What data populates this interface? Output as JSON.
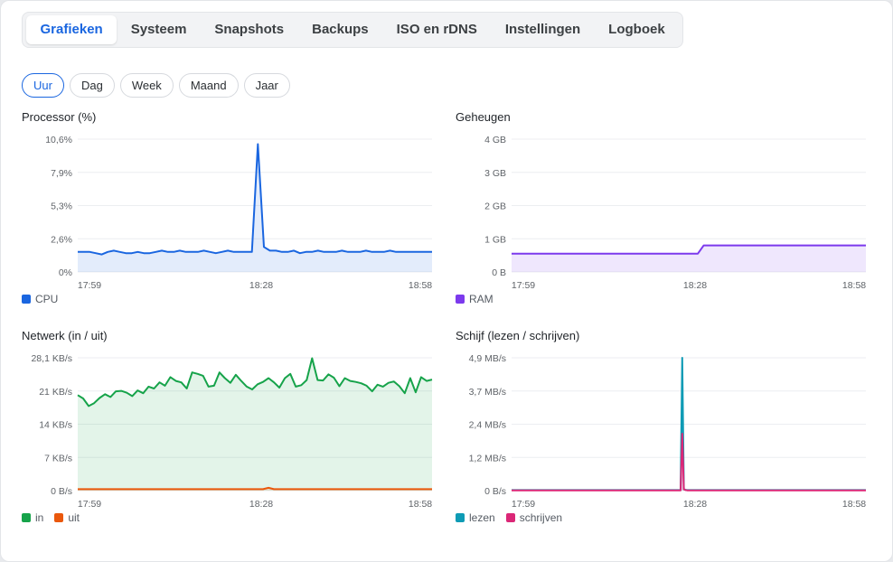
{
  "tabs": [
    {
      "label": "Grafieken",
      "active": true
    },
    {
      "label": "Systeem",
      "active": false
    },
    {
      "label": "Snapshots",
      "active": false
    },
    {
      "label": "Backups",
      "active": false
    },
    {
      "label": "ISO en rDNS",
      "active": false
    },
    {
      "label": "Instellingen",
      "active": false
    },
    {
      "label": "Logboek",
      "active": false
    }
  ],
  "ranges": [
    {
      "label": "Uur",
      "active": true
    },
    {
      "label": "Dag",
      "active": false
    },
    {
      "label": "Week",
      "active": false
    },
    {
      "label": "Maand",
      "active": false
    },
    {
      "label": "Jaar",
      "active": false
    }
  ],
  "charts": {
    "cpu": {
      "title": "Processor (%)",
      "legend": [
        {
          "label": "CPU",
          "color": "#1a66e0"
        }
      ]
    },
    "ram": {
      "title": "Geheugen",
      "legend": [
        {
          "label": "RAM",
          "color": "#7c3aed"
        }
      ]
    },
    "net": {
      "title": "Netwerk (in / uit)",
      "legend": [
        {
          "label": "in",
          "color": "#16a34a"
        },
        {
          "label": "uit",
          "color": "#ea580c"
        }
      ]
    },
    "disk": {
      "title": "Schijf (lezen / schrijven)",
      "legend": [
        {
          "label": "lezen",
          "color": "#0e9bb5"
        },
        {
          "label": "schrijven",
          "color": "#db2777"
        }
      ]
    }
  },
  "chart_data": [
    {
      "id": "cpu",
      "type": "area",
      "title": "Processor (%)",
      "x_ticks": [
        "17:59",
        "18:28",
        "18:58"
      ],
      "y_ticks": [
        "0%",
        "2,6%",
        "5,3%",
        "7,9%",
        "10,6%"
      ],
      "ylim": [
        0,
        10.6
      ],
      "grid": true,
      "legend": "bottom-left",
      "series": [
        {
          "name": "CPU",
          "color": "#1a66e0",
          "values": [
            1.6,
            1.6,
            1.6,
            1.5,
            1.4,
            1.6,
            1.7,
            1.6,
            1.5,
            1.5,
            1.6,
            1.5,
            1.5,
            1.6,
            1.7,
            1.6,
            1.6,
            1.7,
            1.6,
            1.6,
            1.6,
            1.7,
            1.6,
            1.5,
            1.6,
            1.7,
            1.6,
            1.6,
            1.6,
            1.6,
            10.2,
            2.0,
            1.7,
            1.7,
            1.6,
            1.6,
            1.7,
            1.5,
            1.6,
            1.6,
            1.7,
            1.6,
            1.6,
            1.6,
            1.7,
            1.6,
            1.6,
            1.6,
            1.7,
            1.6,
            1.6,
            1.6,
            1.7,
            1.6,
            1.6,
            1.6,
            1.6,
            1.6,
            1.6,
            1.6
          ]
        }
      ]
    },
    {
      "id": "ram",
      "type": "area",
      "title": "Geheugen",
      "x_ticks": [
        "17:59",
        "18:28",
        "18:58"
      ],
      "y_ticks": [
        "0 B",
        "1 GB",
        "2 GB",
        "3 GB",
        "4 GB"
      ],
      "ylim": [
        0,
        4
      ],
      "grid": true,
      "legend": "bottom-left",
      "series": [
        {
          "name": "RAM",
          "color": "#7c3aed",
          "values": [
            0.55,
            0.55,
            0.55,
            0.55,
            0.55,
            0.55,
            0.55,
            0.55,
            0.55,
            0.55,
            0.55,
            0.55,
            0.55,
            0.55,
            0.55,
            0.55,
            0.55,
            0.55,
            0.55,
            0.55,
            0.55,
            0.55,
            0.55,
            0.55,
            0.55,
            0.55,
            0.55,
            0.55,
            0.55,
            0.55,
            0.55,
            0.55,
            0.8,
            0.8,
            0.8,
            0.8,
            0.8,
            0.8,
            0.8,
            0.8,
            0.8,
            0.8,
            0.8,
            0.8,
            0.8,
            0.8,
            0.8,
            0.8,
            0.8,
            0.8,
            0.8,
            0.8,
            0.8,
            0.8,
            0.8,
            0.8,
            0.8,
            0.8,
            0.8,
            0.8
          ]
        }
      ]
    },
    {
      "id": "net",
      "type": "area",
      "title": "Netwerk (in / uit)",
      "x_ticks": [
        "17:59",
        "18:28",
        "18:58"
      ],
      "y_ticks": [
        "0 B/s",
        "7 KB/s",
        "14 KB/s",
        "21 KB/s",
        "28,1 KB/s"
      ],
      "ylim": [
        0,
        28.1
      ],
      "grid": true,
      "legend": "bottom-left",
      "series": [
        {
          "name": "in",
          "color": "#16a34a",
          "values": [
            20.2,
            19.5,
            17.9,
            18.5,
            19.6,
            20.4,
            19.8,
            21.0,
            21.1,
            20.7,
            20.0,
            21.2,
            20.6,
            22.0,
            21.6,
            22.9,
            22.2,
            24.0,
            23.2,
            22.9,
            21.6,
            25.0,
            24.7,
            24.3,
            22.0,
            22.2,
            25.0,
            23.8,
            22.8,
            24.5,
            23.2,
            22.0,
            21.4,
            22.5,
            23.0,
            23.8,
            22.9,
            21.8,
            23.8,
            24.7,
            22.0,
            22.3,
            23.4,
            28.0,
            23.4,
            23.3,
            24.6,
            23.9,
            22.1,
            23.8,
            23.2,
            23.0,
            22.7,
            22.2,
            21.0,
            22.4,
            22.0,
            22.8,
            23.1,
            22.1,
            20.6,
            23.8,
            20.8,
            24.0,
            23.2,
            23.5
          ]
        },
        {
          "name": "uit",
          "color": "#ea580c",
          "values": [
            0.3,
            0.3,
            0.3,
            0.3,
            0.3,
            0.3,
            0.3,
            0.3,
            0.3,
            0.3,
            0.3,
            0.3,
            0.3,
            0.3,
            0.3,
            0.3,
            0.3,
            0.3,
            0.3,
            0.3,
            0.3,
            0.3,
            0.3,
            0.3,
            0.3,
            0.3,
            0.3,
            0.3,
            0.3,
            0.3,
            0.3,
            0.3,
            0.3,
            0.3,
            0.3,
            0.6,
            0.3,
            0.3,
            0.3,
            0.3,
            0.3,
            0.3,
            0.3,
            0.3,
            0.3,
            0.3,
            0.3,
            0.3,
            0.3,
            0.3,
            0.3,
            0.3,
            0.3,
            0.3,
            0.3,
            0.3,
            0.3,
            0.3,
            0.3,
            0.3,
            0.3,
            0.3,
            0.3,
            0.3,
            0.3,
            0.3
          ]
        }
      ]
    },
    {
      "id": "disk",
      "type": "area",
      "title": "Schijf (lezen / schrijven)",
      "x_ticks": [
        "17:59",
        "18:28",
        "18:58"
      ],
      "y_ticks": [
        "0 B/s",
        "1,2 MB/s",
        "2,4 MB/s",
        "3,7 MB/s",
        "4,9 MB/s"
      ],
      "ylim": [
        0,
        4.9
      ],
      "grid": true,
      "legend": "bottom-left",
      "series": [
        {
          "name": "lezen",
          "color": "#0e9bb5",
          "values": [
            0.02,
            0.02,
            0.02,
            0.02,
            0.02,
            0.02,
            0.02,
            0.02,
            0.02,
            0.02,
            0.02,
            0.02,
            0.02,
            0.02,
            0.02,
            0.02,
            0.02,
            0.02,
            0.02,
            0.02,
            0.02,
            0.02,
            0.02,
            0.02,
            0.02,
            0.02,
            0.02,
            0.02,
            0.02,
            0.02,
            0.02,
            0.02,
            0.02,
            0.02,
            0.02,
            0.02,
            0.02,
            0.02,
            0.02,
            0.02,
            0.02,
            0.02,
            0.02,
            0.02,
            0.02,
            0.02,
            0.02,
            0.02,
            0.02,
            0.02,
            0.02,
            0.02,
            0.02,
            0.02,
            0.02,
            0.02,
            0.02,
            0.02,
            0.02,
            0.02,
            0.02,
            0.02,
            0.02,
            0.02,
            0.02,
            0.02,
            0.02,
            0.02,
            0.02,
            0.02,
            0.02,
            0.02,
            0.02,
            0.02,
            0.02,
            0.02,
            0.02,
            0.02,
            0.02,
            0.02,
            0.02,
            0.02,
            0.02,
            0.02,
            0.02,
            0.02,
            0.02,
            0.02,
            0.02,
            0.02,
            0.02,
            0.02,
            0.02,
            0.02,
            0.02,
            0.02,
            0.02,
            0.02,
            0.02,
            0.02,
            0.02,
            0.02,
            0.02,
            0.02,
            0.02,
            4.9,
            0.05,
            0.03,
            0.02,
            0.02,
            0.02,
            0.02,
            0.02,
            0.02,
            0.02,
            0.02,
            0.02,
            0.02,
            0.02,
            0.02,
            0.02,
            0.02,
            0.02,
            0.02,
            0.02,
            0.02,
            0.02,
            0.02,
            0.02,
            0.02,
            0.02,
            0.02,
            0.02,
            0.02,
            0.02,
            0.02,
            0.02,
            0.02,
            0.02,
            0.02,
            0.02,
            0.02,
            0.02,
            0.02,
            0.02,
            0.02,
            0.02,
            0.02,
            0.02,
            0.02,
            0.02,
            0.02,
            0.02,
            0.02,
            0.02,
            0.02,
            0.02,
            0.02,
            0.02,
            0.02,
            0.02,
            0.02,
            0.02,
            0.02,
            0.02,
            0.02,
            0.02,
            0.02,
            0.02,
            0.02,
            0.02,
            0.02,
            0.02,
            0.02,
            0.02,
            0.02,
            0.02,
            0.02,
            0.02,
            0.02,
            0.02,
            0.02,
            0.02,
            0.02,
            0.02,
            0.02,
            0.02,
            0.02,
            0.02,
            0.02,
            0.02,
            0.02,
            0.02,
            0.02,
            0.02,
            0.02,
            0.02,
            0.02,
            0.02,
            0.02,
            0.02,
            0.02,
            0.02,
            0.02,
            0.02,
            0.02,
            0.02,
            0.02,
            0.02,
            0.02,
            0.02,
            0.02,
            0.02,
            0.02,
            0.02,
            0.02,
            0.02,
            0.02,
            0.02
          ]
        },
        {
          "name": "schrijven",
          "color": "#db2777",
          "values": [
            0.01,
            0.01,
            0.01,
            0.01,
            0.01,
            0.01,
            0.01,
            0.01,
            0.01,
            0.01,
            0.01,
            0.01,
            0.01,
            0.01,
            0.01,
            0.01,
            0.01,
            0.01,
            0.01,
            0.01,
            0.01,
            0.01,
            0.01,
            0.01,
            0.01,
            0.01,
            0.01,
            0.01,
            0.01,
            0.01,
            0.01,
            0.01,
            0.01,
            0.01,
            0.01,
            0.01,
            0.01,
            0.01,
            0.01,
            0.01,
            0.01,
            0.01,
            0.01,
            0.01,
            0.01,
            0.01,
            0.01,
            0.01,
            0.01,
            0.01,
            0.01,
            0.01,
            0.01,
            0.01,
            0.01,
            0.01,
            0.01,
            0.01,
            0.01,
            0.01,
            0.01,
            0.01,
            0.01,
            0.01,
            0.01,
            0.01,
            0.01,
            0.01,
            0.01,
            0.01,
            0.01,
            0.01,
            0.01,
            0.01,
            0.01,
            0.01,
            0.01,
            0.01,
            0.01,
            0.01,
            0.01,
            0.01,
            0.01,
            0.01,
            0.01,
            0.01,
            0.01,
            0.01,
            0.01,
            0.01,
            0.01,
            0.01,
            0.01,
            0.01,
            0.01,
            0.01,
            0.01,
            0.01,
            0.01,
            0.01,
            0.01,
            0.01,
            0.01,
            0.01,
            0.01,
            2.1,
            0.05,
            0.02,
            0.01,
            0.01,
            0.01,
            0.01,
            0.01,
            0.01,
            0.01,
            0.01,
            0.01,
            0.01,
            0.01,
            0.01,
            0.01,
            0.01,
            0.01,
            0.01,
            0.01,
            0.01,
            0.01,
            0.01,
            0.01,
            0.01,
            0.01,
            0.01,
            0.01,
            0.01,
            0.01,
            0.01,
            0.01,
            0.01,
            0.01,
            0.01,
            0.01,
            0.01,
            0.01,
            0.01,
            0.01,
            0.01,
            0.01,
            0.01,
            0.01,
            0.01,
            0.01,
            0.01,
            0.01,
            0.01,
            0.01,
            0.01,
            0.01,
            0.01,
            0.01,
            0.01,
            0.01,
            0.01,
            0.01,
            0.01,
            0.01,
            0.01,
            0.01,
            0.01,
            0.01,
            0.01,
            0.01,
            0.01,
            0.01,
            0.01,
            0.01,
            0.01,
            0.01,
            0.01,
            0.01,
            0.01,
            0.01,
            0.01,
            0.01,
            0.01,
            0.01,
            0.01,
            0.01,
            0.01,
            0.01,
            0.01,
            0.01,
            0.01,
            0.01,
            0.01,
            0.01,
            0.01,
            0.01,
            0.01,
            0.01,
            0.01,
            0.01,
            0.01,
            0.01,
            0.01,
            0.01,
            0.01,
            0.01,
            0.01,
            0.01,
            0.01,
            0.01,
            0.01,
            0.01,
            0.01,
            0.01,
            0.01,
            0.01,
            0.01,
            0.01
          ]
        }
      ]
    }
  ]
}
